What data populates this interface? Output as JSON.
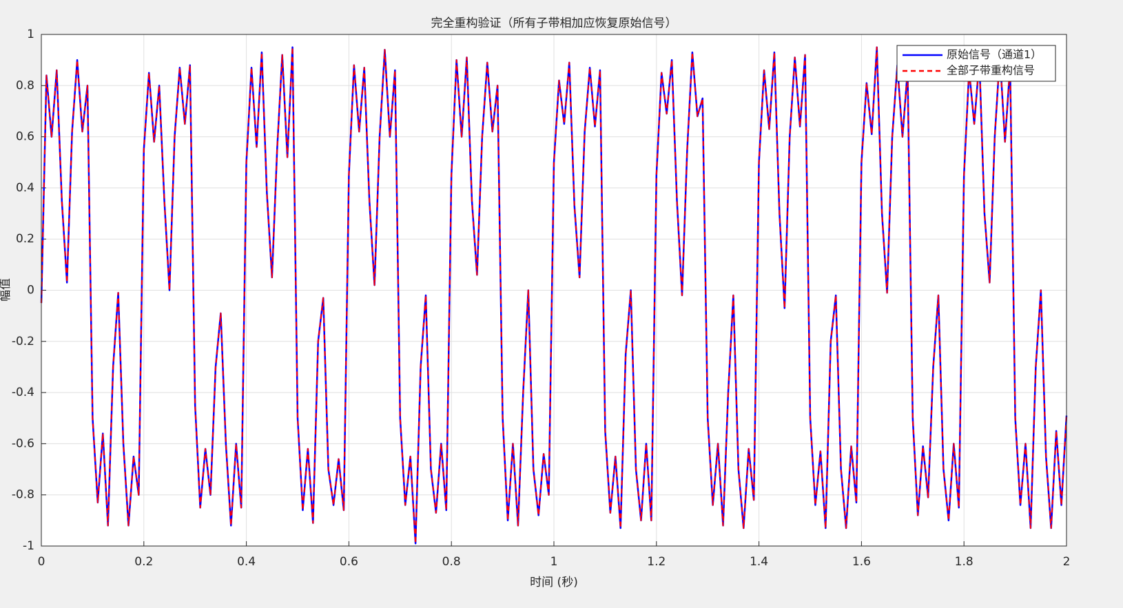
{
  "chart_data": {
    "type": "line",
    "title": "完全重构验证（所有子带相加应恢复原始信号）",
    "xlabel": "时间 (秒)",
    "ylabel": "幅值",
    "x": [
      0,
      0.01,
      0.02,
      0.03,
      0.04,
      0.05,
      0.06,
      0.07,
      0.08,
      0.09,
      0.1,
      0.11,
      0.12,
      0.13,
      0.14,
      0.15,
      0.16,
      0.17,
      0.18,
      0.19,
      0.2,
      0.21,
      0.22,
      0.23,
      0.24,
      0.25,
      0.26,
      0.27,
      0.28,
      0.29,
      0.3,
      0.31,
      0.32,
      0.33,
      0.34,
      0.35,
      0.36,
      0.37,
      0.38,
      0.39,
      0.4,
      0.41,
      0.42,
      0.43,
      0.44,
      0.45,
      0.46,
      0.47,
      0.48,
      0.49,
      0.5,
      0.51,
      0.52,
      0.53,
      0.54,
      0.55,
      0.56,
      0.57,
      0.58,
      0.59,
      0.6,
      0.61,
      0.62,
      0.63,
      0.64,
      0.65,
      0.66,
      0.67,
      0.68,
      0.69,
      0.7,
      0.71,
      0.72,
      0.73,
      0.74,
      0.75,
      0.76,
      0.77,
      0.78,
      0.79,
      0.8,
      0.81,
      0.82,
      0.83,
      0.84,
      0.85,
      0.86,
      0.87,
      0.88,
      0.89,
      0.9,
      0.91,
      0.92,
      0.93,
      0.94,
      0.95,
      0.96,
      0.97,
      0.98,
      0.99,
      1,
      1.01,
      1.02,
      1.03,
      1.04,
      1.05,
      1.06,
      1.07,
      1.08,
      1.09,
      1.1,
      1.11,
      1.12,
      1.13,
      1.14,
      1.15,
      1.16,
      1.17,
      1.18,
      1.19,
      1.2,
      1.21,
      1.22,
      1.23,
      1.24,
      1.25,
      1.26,
      1.27,
      1.28,
      1.29,
      1.3,
      1.31,
      1.32,
      1.33,
      1.34,
      1.35,
      1.36,
      1.37,
      1.38,
      1.39,
      1.4,
      1.41,
      1.42,
      1.43,
      1.44,
      1.45,
      1.46,
      1.47,
      1.48,
      1.49,
      1.5,
      1.51,
      1.52,
      1.53,
      1.54,
      1.55,
      1.56,
      1.57,
      1.58,
      1.59,
      1.6,
      1.61,
      1.62,
      1.63,
      1.64,
      1.65,
      1.66,
      1.67,
      1.68,
      1.69,
      1.7,
      1.71,
      1.72,
      1.73,
      1.74,
      1.75,
      1.76,
      1.77,
      1.78,
      1.79,
      1.8,
      1.81,
      1.82,
      1.83,
      1.84,
      1.85,
      1.86,
      1.87,
      1.88,
      1.89,
      1.9,
      1.91,
      1.92,
      1.93,
      1.94,
      1.95,
      1.96,
      1.97,
      1.98,
      1.99,
      2
    ],
    "series": [
      {
        "name": "原始信号（通道1）",
        "color": "#0000ff",
        "dash": "solid",
        "values": [
          -0.05,
          0.84,
          0.6,
          0.86,
          0.35,
          0.03,
          0.62,
          0.9,
          0.62,
          0.8,
          -0.5,
          -0.83,
          -0.56,
          -0.92,
          -0.3,
          -0.01,
          -0.6,
          -0.92,
          -0.65,
          -0.8,
          0.55,
          0.85,
          0.58,
          0.8,
          0.35,
          0,
          0.6,
          0.87,
          0.65,
          0.88,
          -0.45,
          -0.85,
          -0.62,
          -0.8,
          -0.3,
          -0.09,
          -0.6,
          -0.92,
          -0.6,
          -0.85,
          0.5,
          0.87,
          0.56,
          0.93,
          0.38,
          0.05,
          0.55,
          0.92,
          0.52,
          0.95,
          -0.5,
          -0.86,
          -0.62,
          -0.91,
          -0.2,
          -0.03,
          -0.7,
          -0.84,
          -0.66,
          -0.86,
          0.45,
          0.88,
          0.62,
          0.87,
          0.35,
          0.02,
          0.6,
          0.94,
          0.6,
          0.86,
          -0.5,
          -0.84,
          -0.65,
          -0.99,
          -0.3,
          -0.02,
          -0.7,
          -0.87,
          -0.6,
          -0.86,
          0.45,
          0.9,
          0.6,
          0.91,
          0.35,
          0.06,
          0.6,
          0.89,
          0.62,
          0.8,
          -0.5,
          -0.9,
          -0.6,
          -0.92,
          -0.4,
          0,
          -0.7,
          -0.88,
          -0.64,
          -0.8,
          0.5,
          0.82,
          0.65,
          0.89,
          0.33,
          0.05,
          0.62,
          0.87,
          0.64,
          0.86,
          -0.55,
          -0.87,
          -0.65,
          -0.93,
          -0.25,
          0,
          -0.7,
          -0.9,
          -0.6,
          -0.9,
          0.45,
          0.85,
          0.69,
          0.9,
          0.35,
          -0.02,
          0.55,
          0.93,
          0.68,
          0.75,
          -0.5,
          -0.84,
          -0.6,
          -0.92,
          -0.4,
          -0.02,
          -0.7,
          -0.93,
          -0.62,
          -0.82,
          0.5,
          0.86,
          0.63,
          0.93,
          0.3,
          -0.07,
          0.6,
          0.91,
          0.64,
          0.92,
          -0.5,
          -0.84,
          -0.63,
          -0.93,
          -0.2,
          -0.02,
          -0.7,
          -0.93,
          -0.61,
          -0.83,
          0.5,
          0.81,
          0.61,
          0.95,
          0.3,
          -0.01,
          0.6,
          0.88,
          0.6,
          0.86,
          -0.5,
          -0.88,
          -0.61,
          -0.81,
          -0.3,
          -0.02,
          -0.7,
          -0.9,
          -0.6,
          -0.85,
          0.45,
          0.86,
          0.65,
          0.9,
          0.3,
          0.03,
          0.6,
          0.92,
          0.58,
          0.88,
          -0.5,
          -0.84,
          -0.6,
          -0.93,
          -0.3,
          0,
          -0.65,
          -0.93,
          -0.55,
          -0.84,
          -0.49
        ]
      },
      {
        "name": "全部子带重构信号",
        "color": "#ff0000",
        "dash": "dashed",
        "values": [
          -0.05,
          0.84,
          0.6,
          0.86,
          0.35,
          0.03,
          0.62,
          0.9,
          0.62,
          0.8,
          -0.5,
          -0.83,
          -0.56,
          -0.92,
          -0.3,
          -0.01,
          -0.6,
          -0.92,
          -0.65,
          -0.8,
          0.55,
          0.85,
          0.58,
          0.8,
          0.35,
          0,
          0.6,
          0.87,
          0.65,
          0.88,
          -0.45,
          -0.85,
          -0.62,
          -0.8,
          -0.3,
          -0.09,
          -0.6,
          -0.92,
          -0.6,
          -0.85,
          0.5,
          0.87,
          0.56,
          0.93,
          0.38,
          0.05,
          0.55,
          0.92,
          0.52,
          0.95,
          -0.5,
          -0.86,
          -0.62,
          -0.91,
          -0.2,
          -0.03,
          -0.7,
          -0.84,
          -0.66,
          -0.86,
          0.45,
          0.88,
          0.62,
          0.87,
          0.35,
          0.02,
          0.6,
          0.94,
          0.6,
          0.86,
          -0.5,
          -0.84,
          -0.65,
          -0.99,
          -0.3,
          -0.02,
          -0.7,
          -0.87,
          -0.6,
          -0.86,
          0.45,
          0.9,
          0.6,
          0.91,
          0.35,
          0.06,
          0.6,
          0.89,
          0.62,
          0.8,
          -0.5,
          -0.9,
          -0.6,
          -0.92,
          -0.4,
          0,
          -0.7,
          -0.88,
          -0.64,
          -0.8,
          0.5,
          0.82,
          0.65,
          0.89,
          0.33,
          0.05,
          0.62,
          0.87,
          0.64,
          0.86,
          -0.55,
          -0.87,
          -0.65,
          -0.93,
          -0.25,
          0,
          -0.7,
          -0.9,
          -0.6,
          -0.9,
          0.45,
          0.85,
          0.69,
          0.9,
          0.35,
          -0.02,
          0.55,
          0.93,
          0.68,
          0.75,
          -0.5,
          -0.84,
          -0.6,
          -0.92,
          -0.4,
          -0.02,
          -0.7,
          -0.93,
          -0.62,
          -0.82,
          0.5,
          0.86,
          0.63,
          0.93,
          0.3,
          -0.07,
          0.6,
          0.91,
          0.64,
          0.92,
          -0.5,
          -0.84,
          -0.63,
          -0.93,
          -0.2,
          -0.02,
          -0.7,
          -0.93,
          -0.61,
          -0.83,
          0.5,
          0.81,
          0.61,
          0.95,
          0.3,
          -0.01,
          0.6,
          0.88,
          0.6,
          0.86,
          -0.5,
          -0.88,
          -0.61,
          -0.81,
          -0.3,
          -0.02,
          -0.7,
          -0.9,
          -0.6,
          -0.85,
          0.45,
          0.86,
          0.65,
          0.9,
          0.3,
          0.03,
          0.6,
          0.92,
          0.58,
          0.88,
          -0.5,
          -0.84,
          -0.6,
          -0.93,
          -0.3,
          0,
          -0.65,
          -0.93,
          -0.55,
          -0.84,
          -0.49
        ]
      }
    ],
    "xlim": [
      0,
      2
    ],
    "xticks": [
      0,
      0.2,
      0.4,
      0.6,
      0.8,
      1,
      1.2,
      1.4,
      1.6,
      1.8,
      2
    ],
    "ylim": [
      -1,
      1
    ],
    "yticks": [
      -1,
      -0.8,
      -0.6,
      -0.4,
      -0.2,
      0,
      0.2,
      0.4,
      0.6,
      0.8,
      1
    ],
    "grid": true,
    "legend": "northeast"
  }
}
